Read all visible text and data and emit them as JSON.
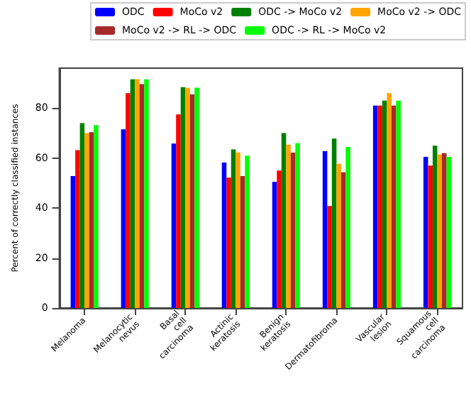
{
  "chart_data": {
    "type": "bar",
    "ylabel": "Percent of correctly classified instances",
    "categories": [
      "Melanoma",
      "Melanocytic\nnevus",
      "Basal\ncell\ncarcinoma",
      "Actinic\nkeratosis",
      "Benign\nkeratosis",
      "Dermatofibroma",
      "Vascular\nlesion",
      "Squamous\ncell\ncarcinoma"
    ],
    "series": [
      {
        "name": "ODC",
        "color": "#0000ff",
        "values": [
          52.8,
          71.5,
          65.8,
          58.2,
          50.5,
          62.8,
          81,
          60.5
        ]
      },
      {
        "name": "MoCo v2",
        "color": "#ff0000",
        "values": [
          63.2,
          86,
          77.5,
          52.2,
          55,
          40.8,
          81,
          57
        ]
      },
      {
        "name": "ODC -> MoCo v2",
        "color": "#008000",
        "values": [
          74,
          91.5,
          88.4,
          63.5,
          70,
          67.8,
          83,
          65
        ]
      },
      {
        "name": "MoCo v2 -> ODC",
        "color": "#ffa500",
        "values": [
          70,
          91.6,
          88.1,
          62.3,
          65.4,
          57.7,
          86,
          61.5
        ]
      },
      {
        "name": "MoCo v2 -> RL -> ODC",
        "color": "#a52a2a",
        "values": [
          70.4,
          89.6,
          85.5,
          52.8,
          62.2,
          54.3,
          81,
          62
        ]
      },
      {
        "name": "ODC -> RL -> MoCo v2",
        "color": "#00ff00",
        "values": [
          73.2,
          91.5,
          88.2,
          61,
          66,
          64.5,
          83,
          60.5
        ]
      }
    ],
    "ylim": [
      0,
      96
    ],
    "yticks": [
      0,
      20,
      40,
      60,
      80
    ],
    "grid": false,
    "legend": "top right"
  }
}
